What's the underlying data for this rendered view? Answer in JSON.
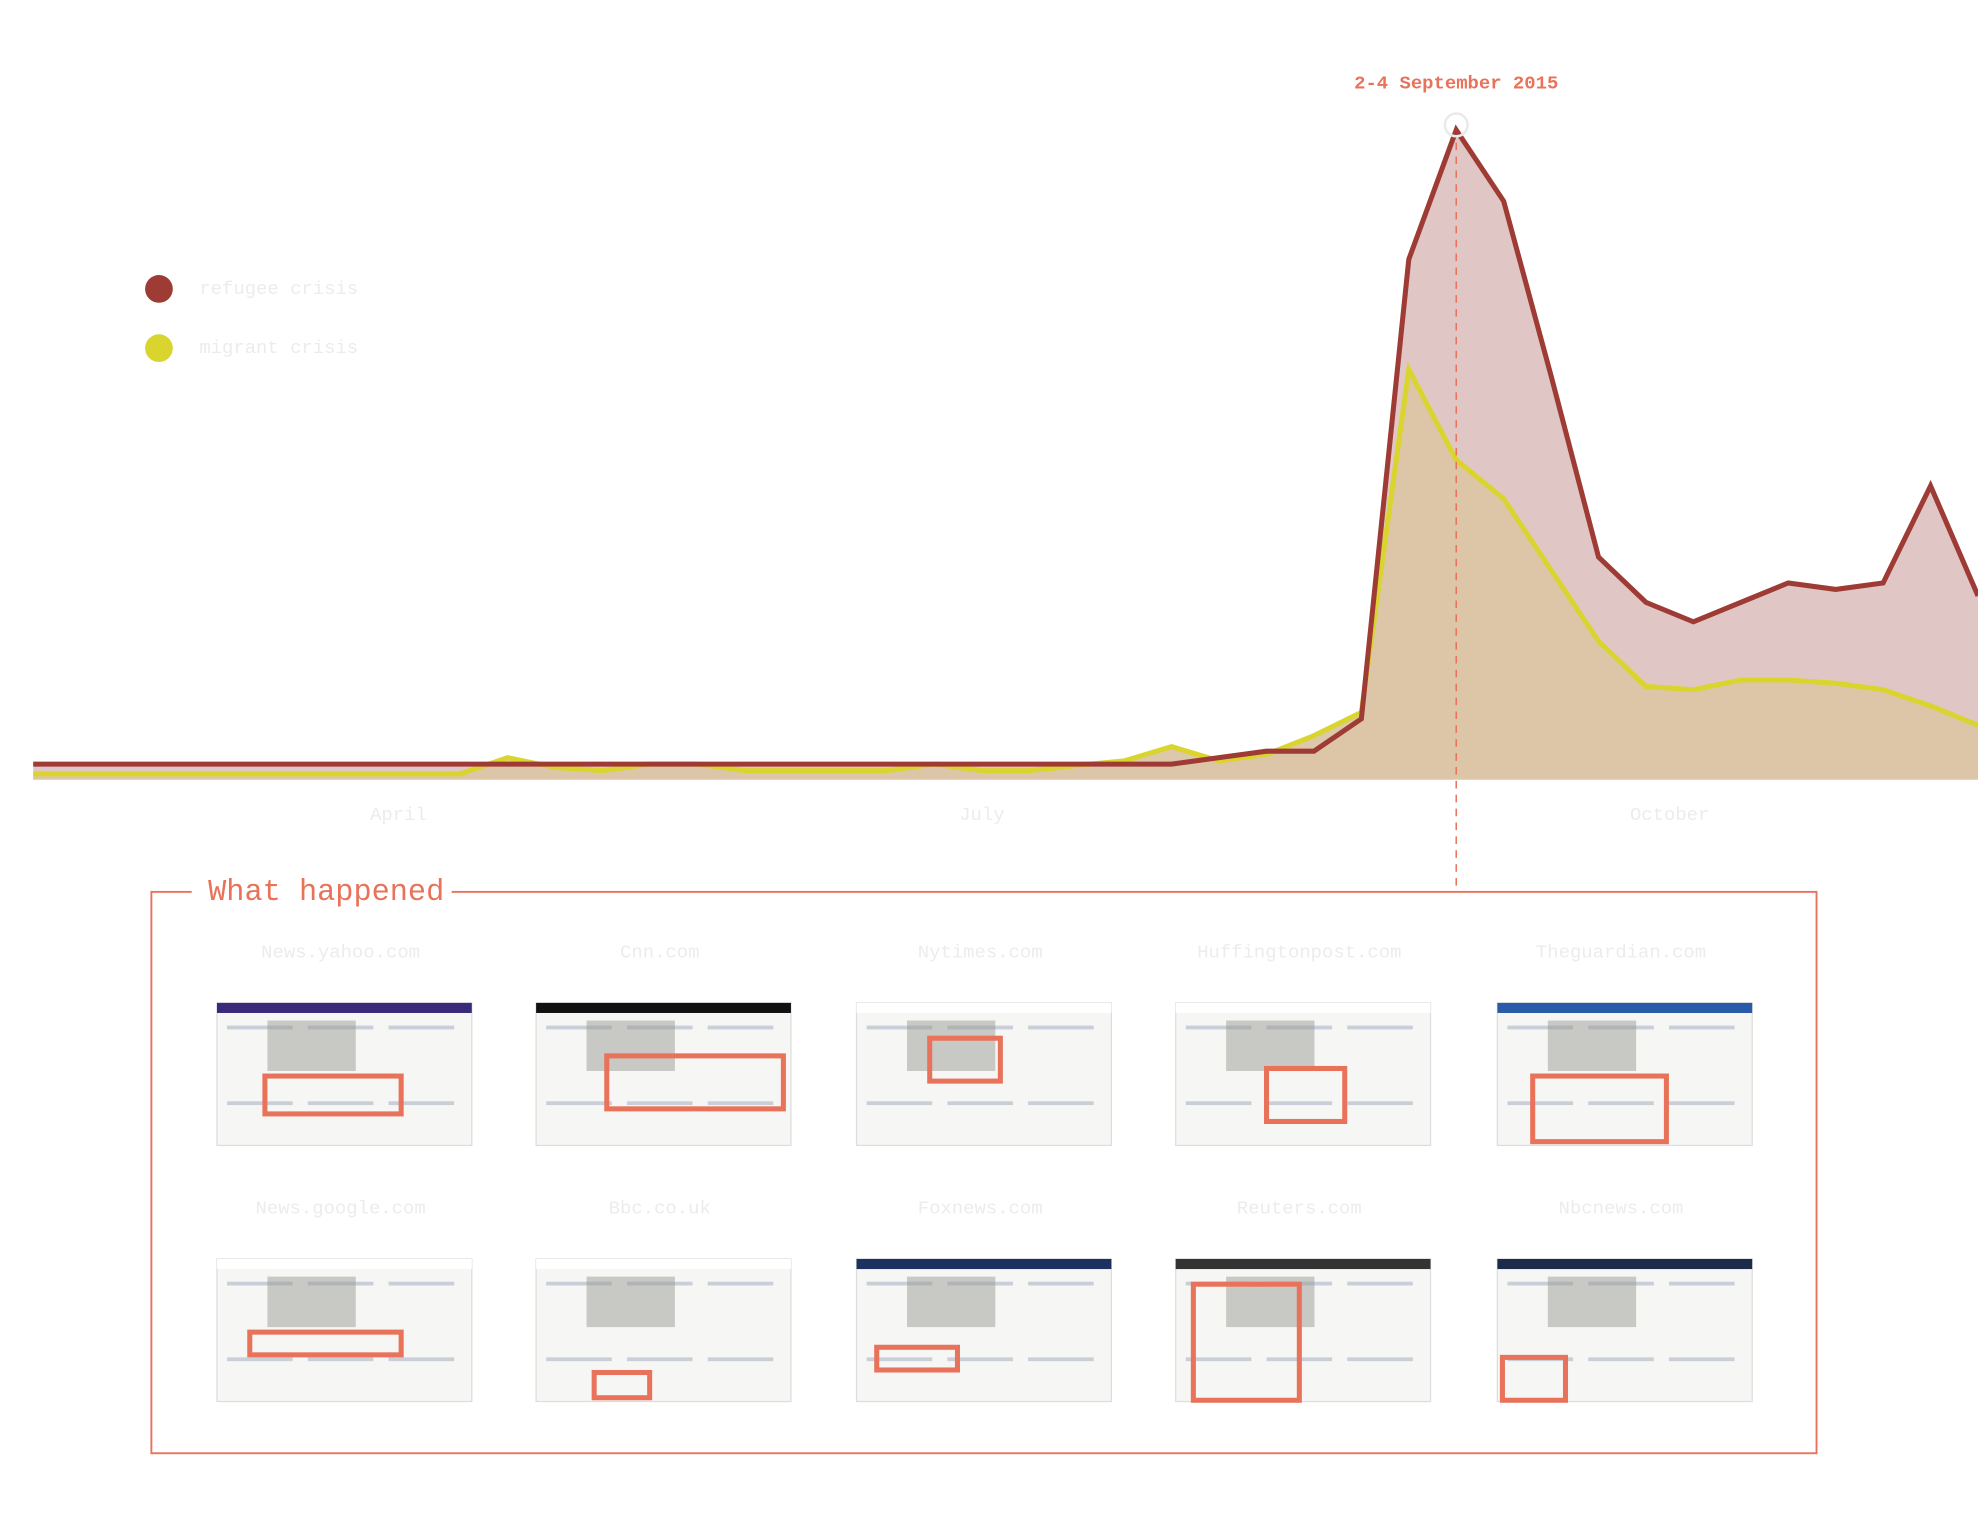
{
  "chart_data": {
    "type": "area",
    "x": [
      1,
      2,
      3,
      4,
      5,
      6,
      7,
      8,
      9,
      10,
      11,
      12,
      13,
      14,
      15,
      16,
      17,
      18,
      19,
      20,
      21,
      22,
      23,
      24,
      25,
      26,
      27,
      28,
      29,
      30,
      31,
      32,
      33,
      34,
      35,
      36,
      37,
      38,
      39,
      40,
      41,
      42
    ],
    "series": [
      {
        "name": "refugee crisis",
        "color": "#9e3b34",
        "fill": "#dcbcbc",
        "values": [
          2,
          2,
          2,
          2,
          2,
          2,
          2,
          2,
          2,
          2,
          2,
          2,
          2,
          2,
          2,
          2,
          2,
          2,
          2,
          2,
          2,
          2,
          2,
          2,
          2,
          3,
          4,
          4,
          9,
          80,
          100,
          89,
          62,
          34,
          27,
          24,
          27,
          30,
          29,
          30,
          45,
          28
        ]
      },
      {
        "name": "migrant crisis",
        "color": "#d9d52e",
        "fill": "#dcc5a6",
        "values": [
          0.5,
          0.5,
          0.5,
          0.5,
          0.5,
          0.5,
          0.5,
          0.5,
          0.5,
          0.5,
          3,
          1.5,
          1,
          2,
          2,
          1,
          1,
          1,
          1,
          2,
          1,
          1,
          1.8,
          2.5,
          4.7,
          2.5,
          3.5,
          6.4,
          10,
          63,
          49,
          43,
          32,
          21,
          14,
          13.5,
          15,
          15,
          14.5,
          13.5,
          11,
          8
        ]
      }
    ],
    "xlim": [
      0.3,
      42
    ],
    "ylim": [
      0,
      100
    ],
    "xticks": [
      {
        "value": 8.7,
        "label": "April"
      },
      {
        "value": 21,
        "label": "July"
      },
      {
        "value": 35.5,
        "label": "October"
      }
    ],
    "annotation": {
      "text": "2-4 September 2015",
      "x": 31
    }
  },
  "what_happened": {
    "title": "What happened",
    "sites": [
      "News.yahoo.com",
      "Cnn.com",
      "Nytimes.com",
      "Huffingtonpost.com",
      "Theguardian.com",
      "News.google.com",
      "Bbc.co.uk",
      "Foxnews.com",
      "Reuters.com",
      "Nbcnews.com"
    ]
  }
}
